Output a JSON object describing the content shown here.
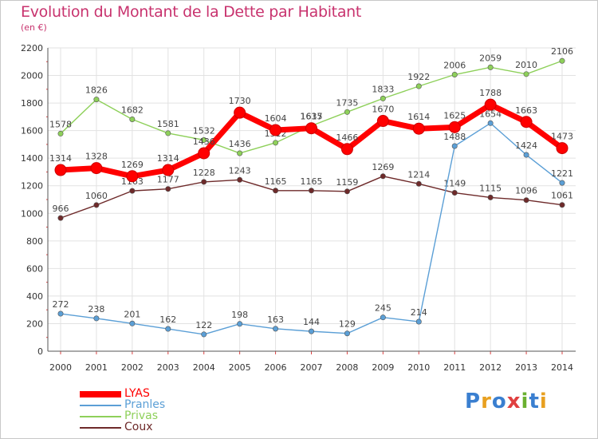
{
  "header": {
    "title": "Evolution du Montant de la Dette par Habitant",
    "subtitle": "(en €)"
  },
  "logo": {
    "text": "Proxiti",
    "letters": [
      {
        "ch": "P",
        "color": "#3a7fd0"
      },
      {
        "ch": "r",
        "color": "#e8a020"
      },
      {
        "ch": "o",
        "color": "#3a7fd0"
      },
      {
        "ch": "x",
        "color": "#e04040"
      },
      {
        "ch": "i",
        "color": "#6ab030"
      },
      {
        "ch": "t",
        "color": "#3a7fd0"
      },
      {
        "ch": "i",
        "color": "#e8a020"
      }
    ]
  },
  "chart_data": {
    "type": "line",
    "title": "Evolution du Montant de la Dette par Habitant",
    "subtitle": "(en €)",
    "x": [
      "2000",
      "2001",
      "2002",
      "2003",
      "2004",
      "2005",
      "2006",
      "2007",
      "2008",
      "2009",
      "2010",
      "2011",
      "2012",
      "2013",
      "2014"
    ],
    "ylim": [
      0,
      2200
    ],
    "yticks": [
      "0",
      "200",
      "400",
      "600",
      "800",
      "1000",
      "1200",
      "1400",
      "1600",
      "1800",
      "2000",
      "2200"
    ],
    "grid": true,
    "legend_position": "bottom-left",
    "series": [
      {
        "name": "Privas",
        "color": "#8ed05a",
        "values": [
          1578,
          1826,
          1682,
          1581,
          1532,
          1436,
          1512,
          1635,
          1735,
          1833,
          1922,
          2006,
          2059,
          2010,
          2106
        ],
        "labels": [
          "1578",
          "1826",
          "1682",
          "1581",
          "1532",
          "1436",
          "1512",
          "1635",
          "1735",
          "1833",
          "1922",
          "2006",
          "2059",
          "2010",
          "2106"
        ]
      },
      {
        "name": "Coux",
        "color": "#6e2a2a",
        "values": [
          966,
          1060,
          1163,
          1177,
          1228,
          1243,
          1165,
          1165,
          1159,
          1269,
          1214,
          1149,
          1115,
          1096,
          1061
        ],
        "labels": [
          "966",
          "1060",
          "1163",
          "1177",
          "1228",
          "1243",
          "1165",
          "1165",
          "1159",
          "1269",
          "1214",
          "1149",
          "1115",
          "1096",
          "1061"
        ]
      },
      {
        "name": "Pranles",
        "color": "#5b9fd6",
        "values": [
          272,
          238,
          201,
          162,
          122,
          198,
          163,
          144,
          129,
          245,
          214,
          1488,
          1654,
          1424,
          1221
        ],
        "labels": [
          "272",
          "238",
          "201",
          "162",
          "122",
          "198",
          "163",
          "144",
          "129",
          "245",
          "214",
          "1488",
          "1654",
          "1424",
          "1221"
        ]
      },
      {
        "name": "LYAS",
        "color": "#ff0000",
        "values": [
          1314,
          1328,
          1269,
          1314,
          1436,
          1730,
          1604,
          1617,
          1466,
          1670,
          1614,
          1625,
          1788,
          1663,
          1473
        ],
        "labels": [
          "1314",
          "1328",
          "1269",
          "1314",
          "1436",
          "1730",
          "1604",
          "1617",
          "1466",
          "1670",
          "1614",
          "1625",
          "1788",
          "1663",
          "1473"
        ]
      }
    ],
    "legend": [
      "LYAS",
      "Pranles",
      "Privas",
      "Coux"
    ]
  }
}
